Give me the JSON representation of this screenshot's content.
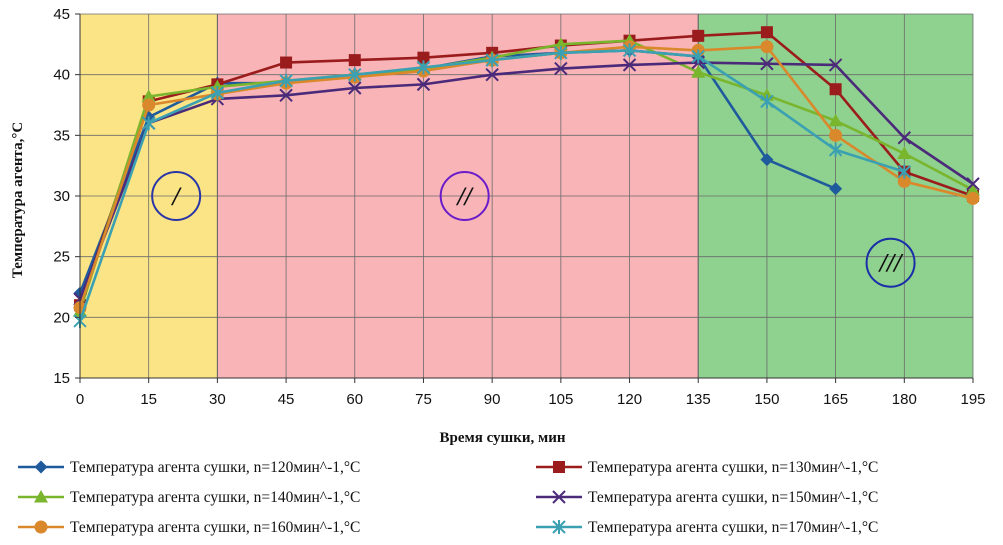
{
  "chart_data": {
    "type": "line",
    "title": "",
    "xlabel": "Время сушки, мин",
    "ylabel": "Температура агента,°С",
    "x": [
      0,
      15,
      30,
      45,
      60,
      75,
      90,
      105,
      120,
      135,
      150,
      165,
      180,
      195
    ],
    "xticks": [
      "0",
      "15",
      "30",
      "45",
      "60",
      "75",
      "90",
      "105",
      "120",
      "135",
      "150",
      "165",
      "180",
      "195"
    ],
    "yticks": [
      "15",
      "20",
      "25",
      "30",
      "35",
      "40",
      "45"
    ],
    "xlim": [
      0,
      195
    ],
    "ylim": [
      15,
      45
    ],
    "grid": true,
    "legend_position": "bottom",
    "zones": [
      {
        "label": "/",
        "x_from": 0,
        "x_to": 30,
        "color": "#fbe486",
        "label_x": 21,
        "label_y": 30,
        "label_color": "#111111",
        "circle_color": "#2a36a6"
      },
      {
        "label": "//",
        "x_from": 30,
        "x_to": 135,
        "color": "#f9b4b8",
        "label_x": 84,
        "label_y": 30,
        "label_color": "#111111",
        "circle_color": "#6a1cc9"
      },
      {
        "label": "///",
        "x_from": 135,
        "x_to": 195,
        "color": "#8fd18f",
        "label_x": 177,
        "label_y": 24.5,
        "label_color": "#111111",
        "circle_color": "#1a2ea8"
      }
    ],
    "series": [
      {
        "name": "Температура агента сушки, n=120мин^-1,°С",
        "color": "#1f5a9c",
        "marker": "diamond",
        "values": [
          22,
          36.5,
          39.3,
          39.3,
          40,
          40.5,
          41.5,
          41.8,
          42,
          41.5,
          33,
          30.6,
          null,
          null
        ]
      },
      {
        "name": "Температура агента сушки, n=130мин^-1,°С",
        "color": "#9b1c1c",
        "marker": "square",
        "values": [
          21,
          37.8,
          39.2,
          41,
          41.2,
          41.4,
          41.8,
          42.4,
          42.8,
          43.2,
          43.5,
          38.8,
          32,
          30
        ]
      },
      {
        "name": "Температура агента сушки, n=140мин^-1,°С",
        "color": "#7ab52e",
        "marker": "triangle",
        "values": [
          20.5,
          38.2,
          39,
          39.5,
          40,
          40.5,
          41.4,
          42.5,
          42.8,
          40.2,
          38.3,
          36.2,
          33.5,
          30.5
        ]
      },
      {
        "name": "Температура агента сушки, n=150мин^-1,°С",
        "color": "#4b2a7a",
        "marker": "x",
        "values": [
          21.5,
          36,
          38,
          38.3,
          38.9,
          39.2,
          40,
          40.5,
          40.8,
          41,
          40.9,
          40.8,
          34.8,
          31
        ]
      },
      {
        "name": "Температура агента сушки, n=160мин^-1,°С",
        "color": "#d9882b",
        "marker": "circle",
        "values": [
          20.8,
          37.5,
          38.4,
          39.3,
          39.8,
          40.3,
          41.2,
          41.8,
          42.3,
          42,
          42.3,
          35,
          31.2,
          29.8
        ]
      },
      {
        "name": "Температура агента сушки, n=170мин^-1,°С",
        "color": "#3aa0b2",
        "marker": "asterisk",
        "values": [
          19.7,
          36,
          38.5,
          39.5,
          40,
          40.6,
          41.2,
          41.8,
          42,
          41.5,
          37.8,
          33.8,
          32,
          null
        ]
      }
    ]
  }
}
